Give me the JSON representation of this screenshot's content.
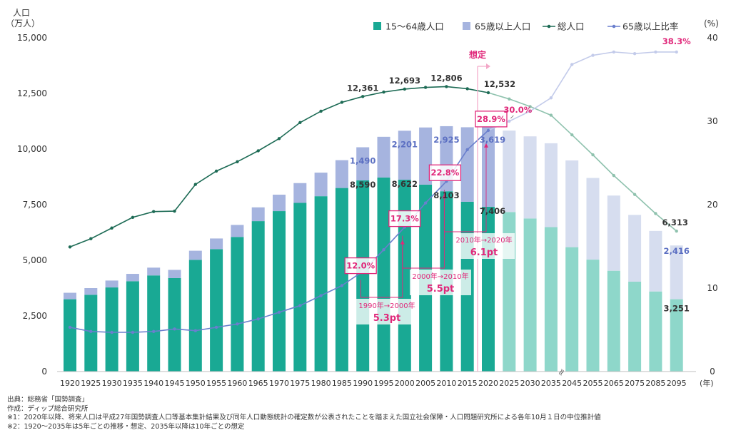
{
  "chart_data": {
    "type": "bar",
    "y_left_label_line1": "人口",
    "y_left_label_line2": "（万人）",
    "y_right_label": "(%)",
    "x_unit": "(年)",
    "ylim_left": [
      0,
      15000
    ],
    "ylim_right": [
      0,
      40
    ],
    "yticks_left": [
      "0",
      "2,500",
      "5,000",
      "7,500",
      "10,000",
      "12,500",
      "15,000"
    ],
    "yticks_right": [
      "0",
      "10",
      "20",
      "30",
      "40"
    ],
    "categories": [
      "1920",
      "1925",
      "1930",
      "1935",
      "1940",
      "1945",
      "1950",
      "1955",
      "1960",
      "1965",
      "1970",
      "1975",
      "1980",
      "1985",
      "1990",
      "1995",
      "2000",
      "2005",
      "2010",
      "2015",
      "2020",
      "2025",
      "2030",
      "2035",
      "2045",
      "2055",
      "2065",
      "2075",
      "2085",
      "2095"
    ],
    "projection_start_index": 21,
    "axis_break_label": "≈",
    "series": [
      {
        "name": "15～64歳人口",
        "kind": "bar",
        "color": "#19a994",
        "projected_color": "#8ed7ca",
        "values": [
          3250,
          3450,
          3780,
          4060,
          4320,
          4200,
          5020,
          5500,
          6050,
          6760,
          7210,
          7580,
          7880,
          8250,
          8590,
          8720,
          8622,
          8400,
          8103,
          7630,
          7406,
          7170,
          6880,
          6490,
          5590,
          5030,
          4530,
          4040,
          3600,
          3251
        ]
      },
      {
        "name": "65歳以上人口",
        "kind": "bar",
        "color": "#a6b4df",
        "projected_color": "#d6ddef",
        "values": [
          290,
          300,
          310,
          330,
          350,
          370,
          410,
          480,
          540,
          620,
          740,
          890,
          1060,
          1250,
          1490,
          1830,
          2201,
          2570,
          2925,
          3350,
          3619,
          3660,
          3690,
          3770,
          3900,
          3670,
          3380,
          3000,
          2720,
          2416
        ]
      },
      {
        "name": "総人口",
        "kind": "line",
        "axis": "left",
        "color": "#1d6b55",
        "projected_color": "#8fc2ae",
        "values": [
          5600,
          5970,
          6450,
          6930,
          7190,
          7210,
          8410,
          9010,
          9430,
          9920,
          10470,
          11190,
          11700,
          12100,
          12361,
          12560,
          12693,
          12770,
          12806,
          12710,
          12532,
          12250,
          11910,
          11520,
          10640,
          9740,
          8810,
          7960,
          7100,
          6313
        ]
      },
      {
        "name": "65歳以上比率",
        "kind": "line",
        "axis": "right",
        "color": "#6a7fcd",
        "projected_color": "#c3cbea",
        "values": [
          5.3,
          4.8,
          4.7,
          4.7,
          4.8,
          5.1,
          4.9,
          5.3,
          5.7,
          6.3,
          7.1,
          7.9,
          9.1,
          10.3,
          12.0,
          14.6,
          17.3,
          20.2,
          22.8,
          26.6,
          28.9,
          30.0,
          31.2,
          32.8,
          36.8,
          37.9,
          38.3,
          38.1,
          38.3,
          38.3
        ]
      }
    ],
    "data_labels": {
      "total": [
        [
          "1990",
          "12,361"
        ],
        [
          "2000",
          "12,693"
        ],
        [
          "2010",
          "12,806"
        ],
        [
          "2020",
          "12,532"
        ],
        [
          "2095",
          "6,313"
        ]
      ],
      "elderly": [
        [
          "1990",
          "1,490"
        ],
        [
          "2000",
          "2,201"
        ],
        [
          "2010",
          "2,925"
        ],
        [
          "2020",
          "3,619"
        ],
        [
          "2095",
          "2,416"
        ]
      ],
      "working": [
        [
          "1990",
          "8,590"
        ],
        [
          "2000",
          "8,622"
        ],
        [
          "2010",
          "8,103"
        ],
        [
          "2020",
          "7,406"
        ],
        [
          "2095",
          "3,251"
        ]
      ],
      "ratio": [
        [
          "1990",
          "12.0%"
        ],
        [
          "2000",
          "17.3%"
        ],
        [
          "2010",
          "22.8%"
        ],
        [
          "2020",
          "28.9%"
        ],
        [
          "2025",
          "30.0%"
        ],
        [
          "2095",
          "38.3%"
        ]
      ]
    },
    "annotations": {
      "projection_label": "想定",
      "diffs": [
        {
          "from": "1990",
          "to": "2000",
          "line1": "1990年→2000年",
          "line2": "5.3pt"
        },
        {
          "from": "2000",
          "to": "2010",
          "line1": "2000年→2010年",
          "line2": "5.5pt"
        },
        {
          "from": "2010",
          "to": "2020",
          "line1": "2010年→2020年",
          "line2": "6.1pt"
        }
      ]
    },
    "legend_position": "top-right",
    "grid": false
  },
  "notes": [
    "出典：総務省「国勢調査」",
    "作成：ディップ総合研究所",
    "※1：2020年以降、将来人口は平成27年国勢調査人口等基本集計結果及び同年人口動態統計の確定数が公表されたことを踏まえた国立社会保障・人口問題研究所による各年10月１日の中位推計値",
    "※2：1920～2035年は5年ごとの推移・想定、2035年以降は10年ごとの想定"
  ],
  "colors": {
    "accent_pink": "#e0287a",
    "divider_pink": "#f3a8c8"
  }
}
